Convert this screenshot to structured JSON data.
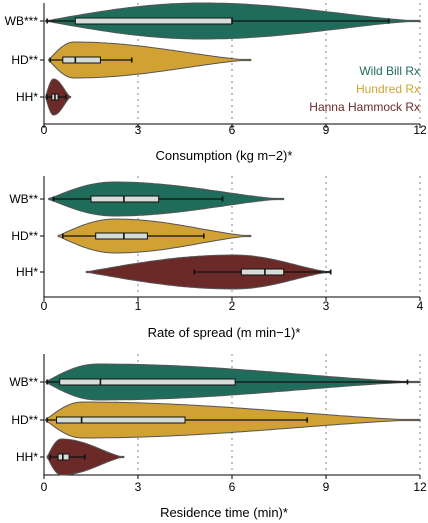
{
  "colors": {
    "WB": "#1f6c5b",
    "HD": "#d1a133",
    "HH": "#6b2a27",
    "box_fill": "#d6dcd8",
    "grid": "#b3b3b3"
  },
  "legend": {
    "position": "right",
    "entries": [
      {
        "key": "WB",
        "label": "Wild Bill Rx"
      },
      {
        "key": "HD",
        "label": "Hundred Rx"
      },
      {
        "key": "HH",
        "label": "Hanna Hammock Rx"
      }
    ]
  },
  "chart_data": [
    {
      "type": "violin",
      "xlabel": "Consumption (kg m−2)*",
      "xlim": [
        0,
        12
      ],
      "xticks": [
        0,
        3,
        6,
        9,
        12
      ],
      "grid": "vertical-dotted",
      "groups": [
        {
          "key": "WB",
          "label": "WB***",
          "min": 0.1,
          "q1": 1.0,
          "median": 6.0,
          "q3": 6.0,
          "max": 11.0,
          "violin_range": [
            0.05,
            12.0
          ],
          "density_peak": 0.5
        },
        {
          "key": "HD",
          "label": "HD**",
          "min": 0.2,
          "q1": 0.6,
          "median": 1.0,
          "q3": 1.8,
          "max": 2.8,
          "violin_range": [
            0.15,
            6.6
          ],
          "density_peak": 0.6
        },
        {
          "key": "HH",
          "label": "HH*",
          "min": 0.1,
          "q1": 0.25,
          "median": 0.35,
          "q3": 0.45,
          "max": 0.7,
          "violin_range": [
            0.05,
            0.85
          ],
          "density_peak": 0.85
        }
      ]
    },
    {
      "type": "violin",
      "xlabel": "Rate of spread (m min−1)*",
      "xlim": [
        0,
        4
      ],
      "xticks": [
        0,
        1,
        2,
        3,
        4
      ],
      "grid": "vertical-dotted",
      "groups": [
        {
          "key": "WB",
          "label": "WB**",
          "min": 0.1,
          "q1": 0.5,
          "median": 0.85,
          "q3": 1.22,
          "max": 1.9,
          "violin_range": [
            0.05,
            2.55
          ],
          "density_peak": 0.45
        },
        {
          "key": "HD",
          "label": "HD**",
          "min": 0.2,
          "q1": 0.55,
          "median": 0.85,
          "q3": 1.1,
          "max": 1.7,
          "violin_range": [
            0.15,
            2.2
          ],
          "density_peak": 0.45
        },
        {
          "key": "HH",
          "label": "HH*",
          "min": 1.6,
          "q1": 2.1,
          "median": 2.35,
          "q3": 2.55,
          "max": 3.05,
          "violin_range": [
            0.45,
            3.05
          ],
          "density_peak": 0.45
        }
      ]
    },
    {
      "type": "violin",
      "xlabel": "Residence time (min)*",
      "xlim": [
        0,
        12
      ],
      "xticks": [
        0,
        3,
        6,
        9,
        12
      ],
      "grid": "vertical-dotted",
      "groups": [
        {
          "key": "WB",
          "label": "WB**",
          "min": 0.1,
          "q1": 0.5,
          "median": 1.8,
          "q3": 6.1,
          "max": 11.6,
          "violin_range": [
            0.05,
            12.0
          ],
          "density_peak": 0.5
        },
        {
          "key": "HD",
          "label": "HD**",
          "min": 0.1,
          "q1": 0.4,
          "median": 1.2,
          "q3": 4.5,
          "max": 8.4,
          "violin_range": [
            0.05,
            12.0
          ],
          "density_peak": 0.5
        },
        {
          "key": "HH",
          "label": "HH*",
          "min": 0.2,
          "q1": 0.45,
          "median": 0.6,
          "q3": 0.8,
          "max": 1.3,
          "violin_range": [
            0.1,
            2.55
          ],
          "density_peak": 0.8
        }
      ]
    }
  ]
}
